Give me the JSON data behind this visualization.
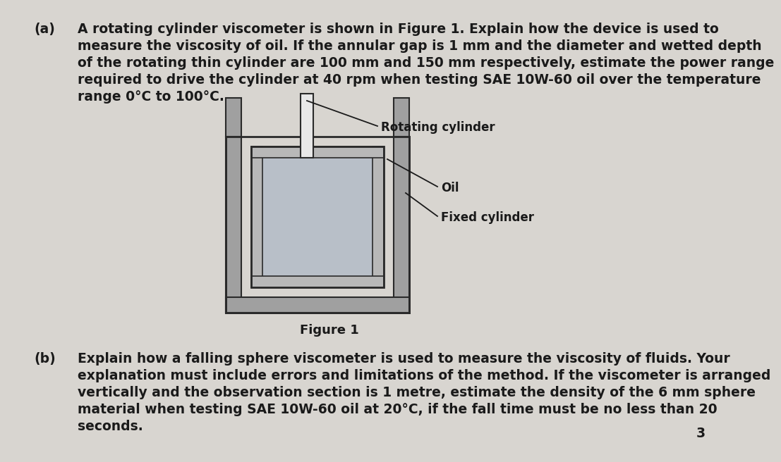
{
  "background_color": "#d8d5d0",
  "text_color": "#1a1a1a",
  "title_a": "(a)",
  "title_b": "(b)",
  "page_number": "3",
  "text_a": "A rotating cylinder viscometer is shown in Figure 1. Explain how the device is used to\nmeasure the viscosity of oil. If the annular gap is 1 mm and the diameter and wetted depth\nof the rotating thin cylinder are 100 mm and 150 mm respectively, estimate the power range\nrequired to drive the cylinder at 40 rpm when testing SAE 10W-60 oil over the temperature\nrange 0°C to 100°C.",
  "figure_caption": "Figure 1",
  "label_rotating": "Rotating cylinder",
  "label_oil": "Oil",
  "label_fixed": "Fixed cylinder",
  "text_b": "Explain how a falling sphere viscometer is used to measure the viscosity of fluids. Your\nexplanation must include errors and limitations of the method. If the viscometer is arranged\nvertically and the observation section is 1 metre, estimate the density of the 6 mm sphere\nmaterial when testing SAE 10W-60 oil at 20°C, if the fall time must be no less than 20\nseconds.",
  "font_size_main": 13.5,
  "font_size_label": 12.0,
  "font_size_caption": 13.0,
  "outer_wall_color": "#a0a0a0",
  "outer_wall_edge": "#2a2a2a",
  "inner_wall_color": "#b8b8b8",
  "inner_wall_edge": "#2a2a2a",
  "inner_fill_color": "#c8c8c8",
  "shaft_fill_color": "#e8e8e8",
  "shaft_edge_color": "#2a2a2a"
}
